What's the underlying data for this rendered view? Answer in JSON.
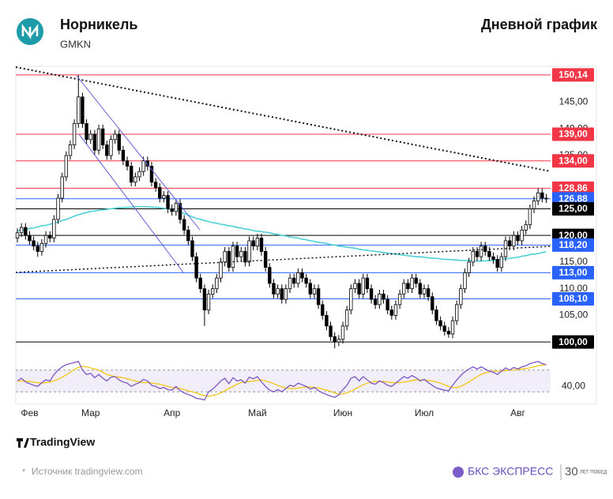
{
  "header": {
    "title": "Норникель",
    "ticker": "GMKN",
    "chart_label": "Дневной график"
  },
  "chart_data": {
    "type": "candlestick",
    "categories": [
      null,
      null,
      null,
      "Фев",
      null,
      null,
      null,
      null,
      null,
      null,
      null,
      null,
      null,
      null,
      null,
      null,
      null,
      null,
      "Мар",
      null,
      null,
      null,
      null,
      null,
      null,
      null,
      null,
      null,
      null,
      null,
      null,
      null,
      null,
      null,
      null,
      null,
      null,
      null,
      "Апр",
      null,
      null,
      null,
      null,
      null,
      null,
      null,
      null,
      null,
      null,
      null,
      null,
      null,
      null,
      null,
      null,
      null,
      null,
      null,
      null,
      "Май",
      null,
      null,
      null,
      null,
      null,
      null,
      null,
      null,
      null,
      null,
      null,
      null,
      null,
      null,
      null,
      null,
      null,
      null,
      null,
      null,
      "Июн",
      null,
      null,
      null,
      null,
      null,
      null,
      null,
      null,
      null,
      null,
      null,
      null,
      null,
      null,
      null,
      null,
      null,
      null,
      null,
      "Июл",
      null,
      null,
      null,
      null,
      null,
      null,
      null,
      null,
      null,
      null,
      null,
      null,
      null,
      null,
      null,
      null,
      null,
      null,
      null,
      null,
      null,
      null,
      "Авг",
      null,
      null,
      null,
      null,
      null,
      null,
      null
    ],
    "candles": [
      [
        119.5,
        121.3,
        118.7,
        120.5
      ],
      [
        120.5,
        122.3,
        119.7,
        121.5
      ],
      [
        121.5,
        122.3,
        119.2,
        120
      ],
      [
        120,
        120.8,
        118.2,
        119
      ],
      [
        119,
        119.8,
        117.2,
        118
      ],
      [
        118,
        118.8,
        116,
        117
      ],
      [
        117,
        119.3,
        116.2,
        118.5
      ],
      [
        118.5,
        120.8,
        117.7,
        120
      ],
      [
        120,
        120.8,
        118.7,
        119.5
      ],
      [
        119.5,
        123.8,
        118.7,
        123
      ],
      [
        123,
        127.8,
        122.2,
        127
      ],
      [
        127,
        131.8,
        126.2,
        131
      ],
      [
        131,
        135.8,
        130.2,
        135
      ],
      [
        135,
        137.8,
        134.2,
        137
      ],
      [
        137,
        141.8,
        136.2,
        141
      ],
      [
        141,
        150.14,
        140.2,
        146
      ],
      [
        146,
        146.8,
        140.2,
        141
      ],
      [
        141,
        141.8,
        137.2,
        138
      ],
      [
        138,
        139.8,
        137.2,
        139
      ],
      [
        139,
        139.8,
        135.2,
        136
      ],
      [
        136,
        140.8,
        135.2,
        140
      ],
      [
        140,
        140.8,
        136.2,
        137
      ],
      [
        137,
        137.8,
        134.2,
        135
      ],
      [
        135,
        138.8,
        134.2,
        138
      ],
      [
        138,
        139.8,
        137.2,
        139
      ],
      [
        139,
        139.8,
        135.2,
        136
      ],
      [
        136,
        136.8,
        133.2,
        134
      ],
      [
        134,
        134.8,
        132.2,
        133
      ],
      [
        133,
        133.8,
        129.2,
        130
      ],
      [
        130,
        131.8,
        129.2,
        131
      ],
      [
        131,
        132.8,
        130.2,
        132
      ],
      [
        132,
        134.8,
        131.2,
        134
      ],
      [
        134,
        134.8,
        132.2,
        133
      ],
      [
        133,
        133.8,
        129.2,
        130
      ],
      [
        130,
        130.8,
        128.2,
        129
      ],
      [
        129,
        129.8,
        126.2,
        127
      ],
      [
        127,
        128.3,
        126.2,
        127.5
      ],
      [
        127.5,
        128.3,
        124.2,
        125
      ],
      [
        125,
        125.8,
        123.7,
        124.5
      ],
      [
        124.5,
        126.8,
        123.7,
        126
      ],
      [
        126,
        126.8,
        122.2,
        123
      ],
      [
        123,
        123.8,
        120.2,
        121
      ],
      [
        121,
        121.8,
        118.2,
        119
      ],
      [
        119,
        119.8,
        115.2,
        116
      ],
      [
        116,
        116.8,
        111.2,
        112
      ],
      [
        112,
        112.8,
        109.2,
        110
      ],
      [
        110,
        110.8,
        103,
        106
      ],
      [
        106,
        109.8,
        105.2,
        109
      ],
      [
        109,
        110.8,
        108.2,
        110
      ],
      [
        110,
        112.8,
        109.2,
        112
      ],
      [
        112,
        115.8,
        111.2,
        115
      ],
      [
        115,
        117.8,
        114.2,
        117
      ],
      [
        117,
        117.8,
        113.2,
        114
      ],
      [
        114,
        118.8,
        113.2,
        118
      ],
      [
        118,
        118.8,
        115.2,
        116
      ],
      [
        116,
        117.8,
        115.2,
        117
      ],
      [
        117,
        117.8,
        114.2,
        115
      ],
      [
        115,
        119.8,
        114.2,
        119
      ],
      [
        119,
        119.8,
        117.2,
        118
      ],
      [
        118,
        120.3,
        117.2,
        119.5
      ],
      [
        119.5,
        120.3,
        116.2,
        117
      ],
      [
        117,
        117.8,
        113.2,
        114
      ],
      [
        114,
        114.8,
        110.2,
        111
      ],
      [
        111,
        111.8,
        108.2,
        109
      ],
      [
        109,
        110.8,
        108.2,
        110
      ],
      [
        110,
        110.8,
        107.2,
        108
      ],
      [
        108,
        110.8,
        107.2,
        110
      ],
      [
        110,
        112.8,
        109.2,
        112
      ],
      [
        112,
        112.8,
        110.2,
        111
      ],
      [
        111,
        113.8,
        110.2,
        113
      ],
      [
        113,
        113.8,
        111.2,
        112
      ],
      [
        112,
        112.8,
        110.2,
        111
      ],
      [
        111,
        111.8,
        108.2,
        109
      ],
      [
        109,
        110.8,
        108.2,
        110
      ],
      [
        110,
        110.8,
        106.2,
        107
      ],
      [
        107,
        107.8,
        104.2,
        105
      ],
      [
        105,
        105.8,
        102.2,
        103
      ],
      [
        103,
        103.8,
        100.2,
        101
      ],
      [
        101,
        101.8,
        98.8,
        100
      ],
      [
        100,
        101.3,
        99.2,
        100.5
      ],
      [
        100.5,
        103.8,
        99.7,
        103
      ],
      [
        103,
        106.8,
        102.2,
        106
      ],
      [
        106,
        110.8,
        105.2,
        110
      ],
      [
        110,
        111.8,
        109.2,
        111
      ],
      [
        111,
        111.8,
        108.2,
        109
      ],
      [
        109,
        112.8,
        108.2,
        112
      ],
      [
        112,
        112.8,
        109.2,
        110
      ],
      [
        110,
        110.8,
        107.2,
        108
      ],
      [
        108,
        108.8,
        106.2,
        107
      ],
      [
        107,
        109.8,
        106.2,
        109
      ],
      [
        109,
        109.8,
        107.2,
        108
      ],
      [
        108,
        108.8,
        105.2,
        106
      ],
      [
        106,
        106.8,
        104.2,
        105
      ],
      [
        105,
        107.8,
        104.2,
        107
      ],
      [
        107,
        109.8,
        106.2,
        109
      ],
      [
        109,
        111.8,
        108.2,
        111
      ],
      [
        111,
        111.8,
        109.2,
        110
      ],
      [
        110,
        112.8,
        109.2,
        112
      ],
      [
        112,
        112.8,
        110.2,
        111
      ],
      [
        111,
        111.8,
        108.2,
        109
      ],
      [
        109,
        110.8,
        108.2,
        110
      ],
      [
        110,
        110.8,
        107.7,
        108.5
      ],
      [
        108.5,
        109.3,
        105.2,
        106
      ],
      [
        106,
        106.8,
        103.2,
        104
      ],
      [
        104,
        104.8,
        102.2,
        103
      ],
      [
        103,
        103.8,
        101.2,
        102
      ],
      [
        102,
        102.8,
        100.8,
        101.5
      ],
      [
        101.5,
        104.8,
        100.7,
        104
      ],
      [
        104,
        107.8,
        103.2,
        107
      ],
      [
        107,
        110.8,
        106.2,
        110
      ],
      [
        110,
        113.8,
        109.2,
        113
      ],
      [
        113,
        115.8,
        112.2,
        115
      ],
      [
        115,
        117.8,
        114.2,
        117
      ],
      [
        117,
        117.8,
        115.2,
        116
      ],
      [
        116,
        118.8,
        115.2,
        118
      ],
      [
        118,
        118.8,
        116.2,
        117
      ],
      [
        117,
        117.8,
        115.2,
        116
      ],
      [
        116,
        116.8,
        114.7,
        115.5
      ],
      [
        115.5,
        116.3,
        113.2,
        114
      ],
      [
        114,
        116.8,
        113.2,
        116
      ],
      [
        116,
        119.8,
        115.2,
        119
      ],
      [
        119,
        119.8,
        117.2,
        118
      ],
      [
        118,
        120.8,
        117.2,
        120
      ],
      [
        120,
        120.8,
        118.2,
        119
      ],
      [
        119,
        121.8,
        118.2,
        121
      ],
      [
        121,
        122.8,
        120.2,
        122
      ],
      [
        122,
        125.8,
        121.2,
        125
      ],
      [
        125,
        127.3,
        124.2,
        126.5
      ],
      [
        126.5,
        128.86,
        125.7,
        128
      ],
      [
        128,
        128.8,
        126.2,
        127
      ],
      [
        127,
        127.8,
        126.1,
        126.88
      ]
    ],
    "up_color": "#ffffff",
    "down_color": "#000000",
    "ma": {
      "color": "#4dd0d6",
      "values": [
        120.9,
        121,
        121.1,
        121.3,
        121.4,
        121.6,
        121.8,
        121.9,
        122.1,
        122.3,
        122.5,
        122.8,
        123,
        123.3,
        123.6,
        123.9,
        124.1,
        124.3,
        124.5,
        124.6,
        124.7,
        124.8,
        124.9,
        125,
        125.1,
        125.2,
        125.2,
        125.3,
        125.3,
        125.4,
        125.4,
        125.4,
        125.4,
        125.3,
        125.3,
        125.2,
        125.1,
        125,
        124.9,
        124.7,
        124.4,
        124.1,
        123.8,
        123.5,
        123.2,
        123,
        122.8,
        122.6,
        122.4,
        122.3,
        122.1,
        122,
        121.8,
        121.7,
        121.5,
        121.4,
        121.2,
        121.1,
        120.9,
        120.8,
        120.7,
        120.6,
        120.5,
        120.3,
        120.2,
        120,
        119.9,
        119.7,
        119.6,
        119.5,
        119.3,
        119.2,
        119,
        118.9,
        118.7,
        118.6,
        118.5,
        118.3,
        118.2,
        118,
        117.9,
        117.8,
        117.7,
        117.6,
        117.4,
        117.3,
        117.2,
        117.1,
        117,
        116.9,
        116.8,
        116.7,
        116.6,
        116.5,
        116.4,
        116.3,
        116.2,
        116.1,
        116,
        116,
        115.9,
        115.8,
        115.7,
        115.7,
        115.6,
        115.5,
        115.5,
        115.4,
        115.4,
        115.3,
        115.3,
        115.3,
        115.2,
        115.2,
        115.2,
        115.2,
        115.3,
        115.3,
        115.4,
        115.5,
        115.6,
        115.7,
        115.8,
        115.9,
        116.1,
        116.2,
        116.4,
        116.5,
        116.6,
        116.8,
        116.9
      ]
    },
    "levels": [
      {
        "value": 150.14,
        "label": "150,14",
        "color": "#f23645"
      },
      {
        "value": 139,
        "label": "139,00",
        "color": "#f23645"
      },
      {
        "value": 134,
        "label": "134,00",
        "color": "#f23645"
      },
      {
        "value": 128.86,
        "label": "128,86",
        "color": "#f23645"
      },
      {
        "value": 126.88,
        "label": "126,88",
        "color": "#2962ff"
      },
      {
        "value": 125,
        "label": "125,00",
        "color": "#000000"
      },
      {
        "value": 120,
        "label": "120,00",
        "color": "#000000"
      },
      {
        "value": 118.2,
        "label": "118,20",
        "color": "#2962ff"
      },
      {
        "value": 113,
        "label": "113,00",
        "color": "#2962ff"
      },
      {
        "value": 108.1,
        "label": "108,10",
        "color": "#2962ff"
      },
      {
        "value": 100,
        "label": "100,00",
        "color": "#000000"
      }
    ],
    "ylim": [
      97.2,
      151.6
    ],
    "yticks": [
      {
        "value": 145,
        "label": "145,00"
      },
      {
        "value": 140,
        "label": "140,00"
      },
      {
        "value": 135,
        "label": "135,00"
      },
      {
        "value": 115,
        "label": "115,00"
      },
      {
        "value": 110,
        "label": "110,00"
      },
      {
        "value": 105,
        "label": "105,00"
      }
    ],
    "rsi": {
      "color": "#7e57c2",
      "values": [
        50,
        55,
        48,
        45,
        42,
        40,
        47,
        52,
        50,
        62,
        70,
        76,
        80,
        82,
        84,
        86,
        70,
        62,
        64,
        56,
        62,
        55,
        50,
        57,
        58,
        52,
        48,
        46,
        40,
        44,
        47,
        53,
        50,
        42,
        40,
        36,
        38,
        34,
        33,
        40,
        32,
        28,
        25,
        22,
        18,
        17,
        15,
        30,
        35,
        42,
        50,
        55,
        45,
        56,
        50,
        52,
        46,
        57,
        54,
        58,
        48,
        40,
        33,
        30,
        34,
        30,
        36,
        42,
        40,
        46,
        43,
        40,
        35,
        38,
        32,
        28,
        25,
        22,
        20,
        24,
        34,
        42,
        55,
        58,
        50,
        58,
        52,
        46,
        44,
        50,
        47,
        42,
        40,
        46,
        52,
        58,
        55,
        60,
        56,
        50,
        53,
        47,
        42,
        37,
        35,
        33,
        32,
        42,
        52,
        60,
        67,
        72,
        76,
        72,
        76,
        72,
        68,
        66,
        62,
        68,
        74,
        70,
        75,
        72,
        76,
        78,
        82,
        84,
        86,
        82,
        80
      ],
      "signal": {
        "color": "#f5c518",
        "values": [
          50,
          50,
          50,
          49,
          48,
          47,
          46,
          47,
          48,
          50,
          53,
          57,
          61,
          66,
          71,
          75,
          77,
          76,
          74,
          72,
          70,
          66,
          62,
          60,
          58,
          57,
          56,
          54,
          52,
          50,
          48,
          47,
          47,
          46,
          45,
          44,
          42,
          40,
          38,
          37,
          36,
          34,
          32,
          30,
          28,
          25,
          23,
          22,
          23,
          25,
          28,
          32,
          36,
          40,
          44,
          47,
          48,
          49,
          50,
          51,
          52,
          50,
          48,
          45,
          42,
          39,
          37,
          36,
          36,
          37,
          38,
          39,
          39,
          38,
          37,
          35,
          33,
          31,
          28,
          26,
          26,
          28,
          31,
          35,
          39,
          43,
          46,
          48,
          49,
          49,
          49,
          48,
          47,
          47,
          47,
          48,
          49,
          51,
          52,
          52,
          52,
          51,
          50,
          48,
          46,
          43,
          40,
          38,
          38,
          40,
          44,
          48,
          53,
          58,
          62,
          65,
          67,
          68,
          68,
          68,
          69,
          70,
          70,
          71,
          72,
          73,
          74,
          76,
          78,
          79,
          80
        ]
      },
      "ylim": [
        10,
        90
      ],
      "yticks": [
        {
          "value": 40,
          "label": "40,00"
        }
      ],
      "levels": [
        30,
        70
      ]
    }
  },
  "footer": {
    "brand": "TradingView",
    "note_mark": "*",
    "source": "Источник tradingview.com",
    "publisher": "БКС ЭКСПРЕСС",
    "badge": "30",
    "badge_text": "ЛЕТ ПОБЕД"
  }
}
